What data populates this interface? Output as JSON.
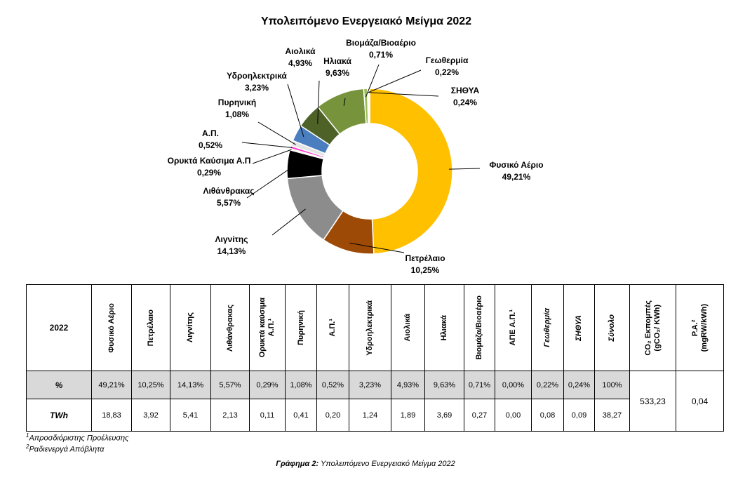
{
  "chart_data": {
    "type": "pie",
    "variant": "donut",
    "title": "Υπολειπόμενο Ενεργειακό Μείγμα 2022",
    "slices": [
      {
        "label": "Φυσικό Αέριο",
        "value": 49.21,
        "display": "49,21%",
        "color": "#ffc000"
      },
      {
        "label": "Πετρέλαιο",
        "value": 10.25,
        "display": "10,25%",
        "color": "#9c4a06"
      },
      {
        "label": "Λιγνίτης",
        "value": 14.13,
        "display": "14,13%",
        "color": "#8c8c8c"
      },
      {
        "label": "Λιθάνθρακας",
        "value": 5.57,
        "display": "5,57%",
        "color": "#000000"
      },
      {
        "label": "Ορυκτά Καύσιμα Α.Π",
        "value": 0.29,
        "display": "0,29%",
        "color": "#f3d7b0"
      },
      {
        "label": "Α.Π.",
        "value": 0.52,
        "display": "0,52%",
        "color": "#ff33cc"
      },
      {
        "label": "Πυρηνική",
        "value": 1.08,
        "display": "1,08%",
        "color": "#e4e4e4"
      },
      {
        "label": "Υδροηλεκτρικά",
        "value": 3.23,
        "display": "3,23%",
        "color": "#4a7ebf"
      },
      {
        "label": "Αιολικά",
        "value": 4.93,
        "display": "4,93%",
        "color": "#4e6228"
      },
      {
        "label": "Ηλιακά",
        "value": 9.63,
        "display": "9,63%",
        "color": "#77933c"
      },
      {
        "label": "Βιομάζα/Βιοαέριο",
        "value": 0.71,
        "display": "0,71%",
        "color": "#9bbb59"
      },
      {
        "label": "Γεωθερμία",
        "value": 0.22,
        "display": "0,22%",
        "color": "#c3d69b"
      },
      {
        "label": "ΣΗΘΥΑ",
        "value": 0.24,
        "display": "0,24%",
        "color": "#eaf1dd"
      }
    ]
  },
  "table": {
    "corner": "2022",
    "columns": [
      {
        "label": "Φυσικό Αέριο"
      },
      {
        "label": "Πετρέλαιο"
      },
      {
        "label": "Λιγνίτης"
      },
      {
        "label": "Λιθάνθρακας"
      },
      {
        "label": "Ορυκτά καύσιμα\nΑ.Π.¹"
      },
      {
        "label": "Πυρηνική"
      },
      {
        "label": "Α.Π.¹"
      },
      {
        "label": "Υδροηλεκτρικά"
      },
      {
        "label": "Αιολικά"
      },
      {
        "label": "Ηλιακά"
      },
      {
        "label": "Βιομάζα/Βιοαέριο"
      },
      {
        "label": "ΑΠΕ Α.Π.¹"
      },
      {
        "label": "Γεωθερμία",
        "italic": true
      },
      {
        "label": "ΣΗΘΥΑ",
        "italic": true
      },
      {
        "label": "Σύνολο",
        "italic": true
      },
      {
        "label": "CO₂ Εκπομπές\n(gCO₂/ KWh)"
      },
      {
        "label": "Ρ.Α.²\n(mgRW/kWh)"
      }
    ],
    "rows": [
      {
        "label": "%",
        "values": [
          "49,21%",
          "10,25%",
          "14,13%",
          "5,57%",
          "0,29%",
          "1,08%",
          "0,52%",
          "3,23%",
          "4,93%",
          "9,63%",
          "0,71%",
          "0,00%",
          "0,22%",
          "0,24%",
          "100%"
        ]
      },
      {
        "label": "TWh",
        "values": [
          "18,83",
          "3,92",
          "5,41",
          "2,13",
          "0,11",
          "0,41",
          "0,20",
          "1,24",
          "1,89",
          "3,69",
          "0,27",
          "0,00",
          "0,08",
          "0,09",
          "38,27"
        ]
      }
    ],
    "co2": "533,23",
    "ra": "0,04"
  },
  "footnotes": {
    "f1_mark": "1",
    "f1_text": "Απροσδιόριστης Προέλευσης",
    "f2_mark": "2",
    "f2_text": "Ραδιενεργά Απόβλητα"
  },
  "caption": {
    "prefix": "Γράφημα 2:",
    "text": " Υπολειπόμενο Ενεργειακό Μείγμα 2022"
  }
}
